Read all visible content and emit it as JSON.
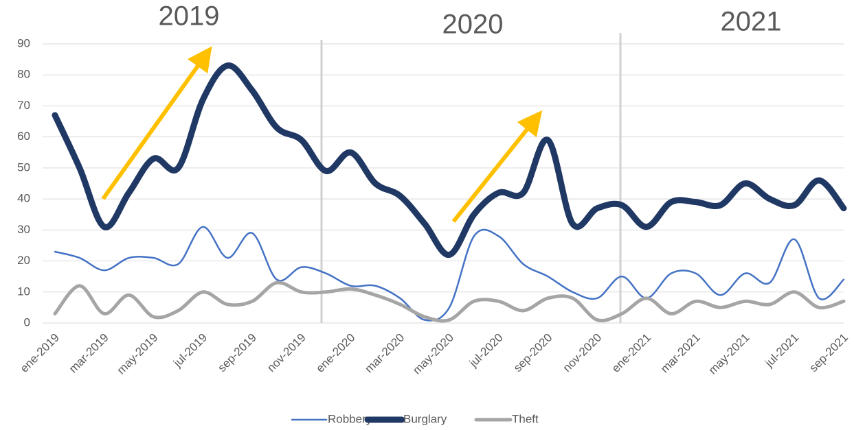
{
  "chart_data": {
    "type": "line",
    "categories": [
      "ene-2019",
      null,
      "mar-2019",
      null,
      "may-2019",
      null,
      "jul-2019",
      null,
      "sep-2019",
      null,
      "nov-2019",
      null,
      "ene-2020",
      null,
      "mar-2020",
      null,
      "may-2020",
      null,
      "jul-2020",
      null,
      "sep-2020",
      null,
      "nov-2020",
      null,
      "ene-2021",
      null,
      "mar-2021",
      null,
      "may-2021",
      null,
      "jul-2021",
      null,
      "sep-2021"
    ],
    "series": [
      {
        "name": "Robbery",
        "color": "#4472c4",
        "values": [
          23,
          21,
          17,
          21,
          21,
          19,
          31,
          21,
          29,
          14,
          18,
          16,
          12,
          12,
          8,
          1,
          5,
          28,
          28,
          19,
          15,
          10,
          8,
          15,
          8,
          16,
          16,
          9,
          16,
          13,
          27,
          8,
          14
        ]
      },
      {
        "name": "Burglary",
        "color": "#203864",
        "values": [
          67,
          50,
          31,
          42,
          53,
          50,
          72,
          83,
          75,
          63,
          59,
          49,
          55,
          45,
          41,
          32,
          22,
          35,
          42,
          42,
          59,
          32,
          37,
          38,
          31,
          39,
          39,
          38,
          45,
          40,
          38,
          46,
          37
        ]
      },
      {
        "name": "Theft",
        "color": "#a5a5a5",
        "values": [
          3,
          12,
          3,
          9,
          2,
          4,
          10,
          6,
          7,
          13,
          10,
          10,
          11,
          9,
          6,
          2,
          1,
          7,
          7,
          4,
          8,
          8,
          1,
          3,
          8,
          3,
          7,
          5,
          7,
          6,
          10,
          5,
          7
        ]
      }
    ],
    "annotations": [
      "2019",
      "2020",
      "2021"
    ],
    "ylim": [
      0,
      90
    ],
    "yticks": [
      0,
      10,
      20,
      30,
      40,
      50,
      60,
      70,
      80,
      90
    ],
    "grid": true,
    "legend": "bottom"
  }
}
